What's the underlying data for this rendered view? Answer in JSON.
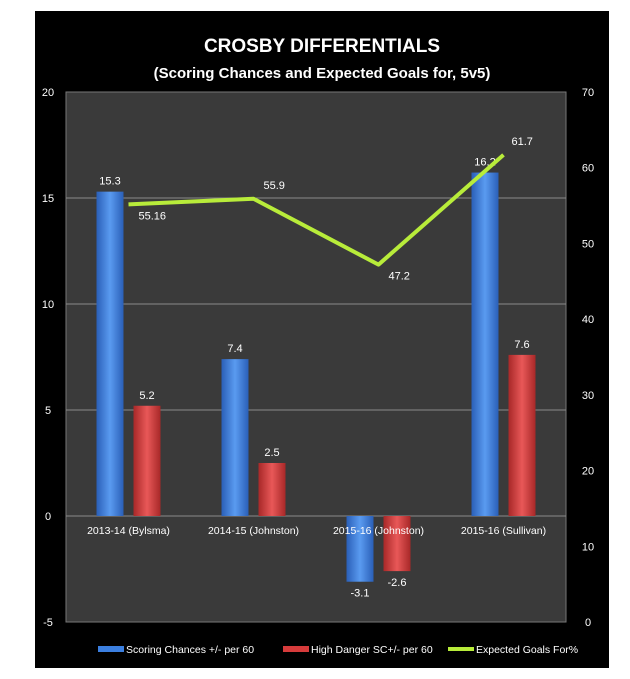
{
  "chart_data": {
    "type": "bar+line",
    "title": "CROSBY DIFFERENTIALS",
    "subtitle": "(Scoring Chances and Expected Goals for, 5v5)",
    "categories": [
      "2013-14 (Bylsma)",
      "2014-15 (Johnston)",
      "2015-16 (Johnston)",
      "2015-16 (Sullivan)"
    ],
    "series": [
      {
        "name": "Scoring Chances +/- per 60",
        "type": "bar",
        "axis": "left",
        "color": "#3b7fe0",
        "values": [
          15.3,
          7.4,
          -3.1,
          16.2
        ],
        "labels": [
          "15.3",
          "7.4",
          "-3.1",
          "16.2"
        ]
      },
      {
        "name": "High Danger SC+/- per 60",
        "type": "bar",
        "axis": "left",
        "color": "#d63b3b",
        "values": [
          5.2,
          2.5,
          -2.6,
          7.6
        ],
        "labels": [
          "5.2",
          "2.5",
          "-2.6",
          "7.6"
        ]
      },
      {
        "name": "Expected Goals For%",
        "type": "line",
        "axis": "right",
        "color": "#b8ec3a",
        "values": [
          55.16,
          55.9,
          47.2,
          61.7
        ],
        "labels": [
          "55.16",
          "55.9",
          "47.2",
          "61.7"
        ]
      }
    ],
    "left_axis": {
      "ylim": [
        -5,
        20
      ],
      "ticks": [
        "20",
        "15",
        "10",
        "5",
        "0",
        "-5"
      ]
    },
    "right_axis": {
      "ylim": [
        0,
        70
      ],
      "ticks": [
        "70",
        "60",
        "50",
        "40",
        "30",
        "20",
        "10",
        "0"
      ]
    },
    "grid": true,
    "legend": "bottom",
    "background": "#000000",
    "plot_background": "#3a3a3a"
  }
}
